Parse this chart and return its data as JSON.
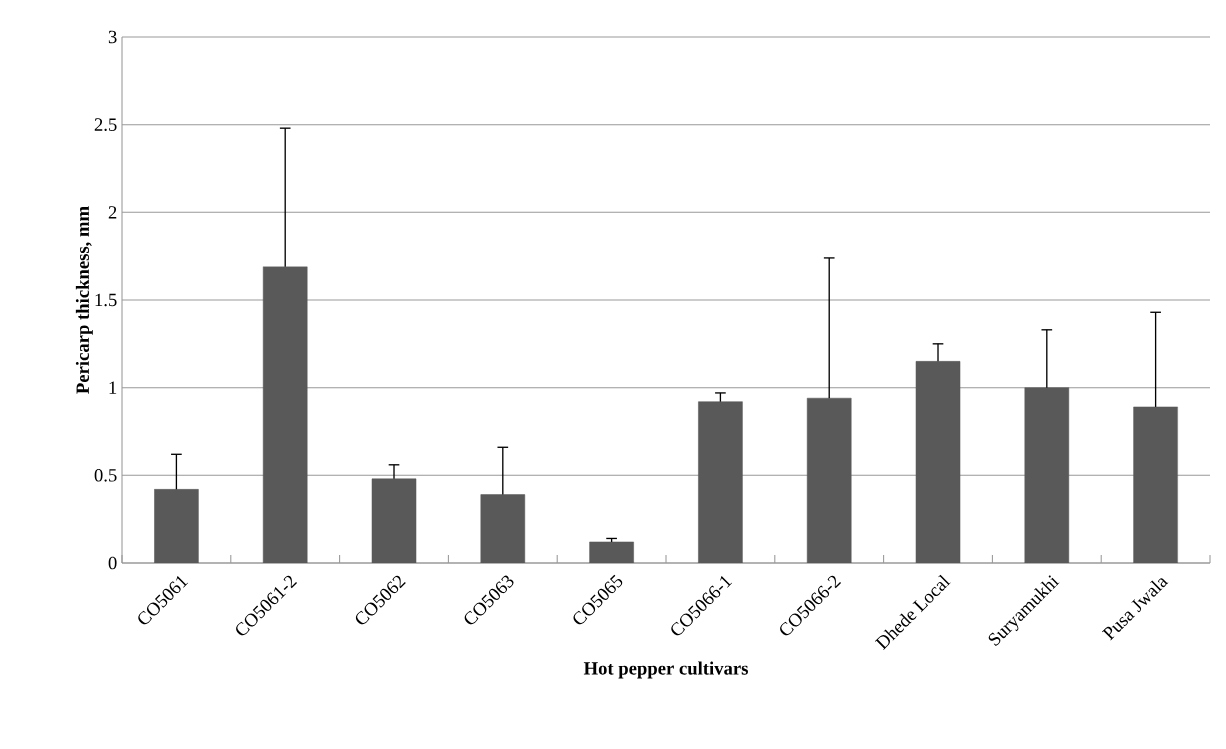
{
  "chart_data": {
    "type": "bar",
    "xlabel": "Hot pepper cultivars",
    "ylabel": "Pericarp thickness, mm",
    "categories": [
      "CO5061",
      "CO5061-2",
      "CO5062",
      "CO5063",
      "CO5065",
      "CO5066-1",
      "CO5066-2",
      "Dhede Local",
      "Suryamukhi",
      "Pusa Jwala"
    ],
    "values": [
      0.42,
      1.69,
      0.48,
      0.39,
      0.12,
      0.92,
      0.94,
      1.15,
      1.0,
      0.89
    ],
    "errors": [
      [
        0.42,
        0.62
      ],
      [
        1.69,
        2.48
      ],
      [
        0.48,
        0.56
      ],
      [
        0.39,
        0.66
      ],
      [
        0.12,
        0.14
      ],
      [
        0.92,
        0.97
      ],
      [
        0.94,
        1.74
      ],
      [
        1.15,
        1.25
      ],
      [
        1.0,
        1.33
      ],
      [
        0.89,
        1.43
      ]
    ],
    "color": "#595959",
    "ylim": [
      0,
      3
    ],
    "yticks": [
      0,
      0.5,
      1,
      1.5,
      2,
      2.5,
      3
    ],
    "grid": "y"
  }
}
